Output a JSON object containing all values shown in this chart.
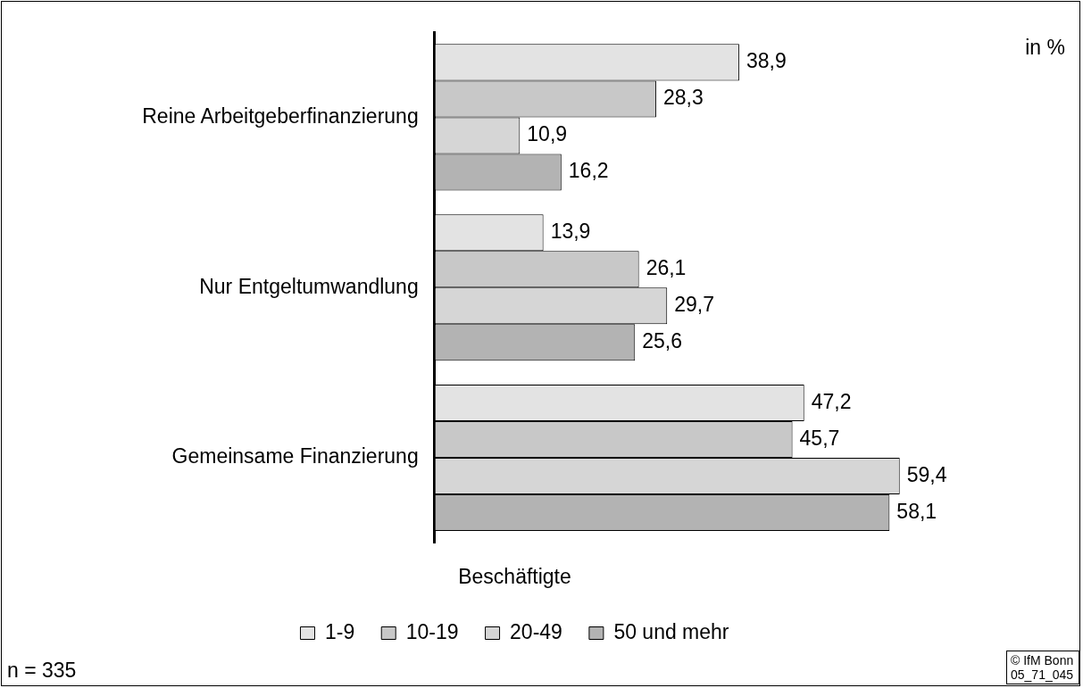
{
  "chart_data": {
    "type": "bar",
    "orientation": "horizontal",
    "categories": [
      "Reine Arbeitgeberfinanzierung",
      "Nur Entgeltumwandlung",
      "Gemeinsame Finanzierung"
    ],
    "series": [
      {
        "name": "1-9",
        "color": "#e3e3e3",
        "values": [
          38.9,
          13.9,
          47.2
        ],
        "value_labels": [
          "38,9",
          "13,9",
          "47,2"
        ]
      },
      {
        "name": "10-19",
        "color": "#c8c8c8",
        "values": [
          28.3,
          26.1,
          45.7
        ],
        "value_labels": [
          "28,3",
          "26,1",
          "45,7"
        ]
      },
      {
        "name": "20-49",
        "color": "#d6d6d6",
        "values": [
          10.9,
          29.7,
          59.4
        ],
        "value_labels": [
          "10,9",
          "29,7",
          "59,4"
        ]
      },
      {
        "name": "50 und mehr",
        "color": "#b3b3b3",
        "values": [
          16.2,
          25.6,
          58.1
        ],
        "value_labels": [
          "16,2",
          "25,6",
          "58,1"
        ]
      }
    ],
    "tick_labels": "y",
    "legend": "bottom",
    "legend_title": "Beschäftigte",
    "annotations": [
      "in %",
      "n = 335",
      "© IfM Bonn 05_71_045"
    ]
  }
}
